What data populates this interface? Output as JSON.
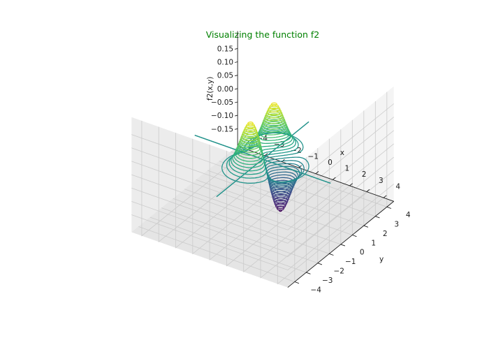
{
  "chart_data": {
    "type": "contour3d",
    "title": "Visualizing the function f2",
    "xlabel": "x",
    "ylabel": "y",
    "zlabel": "f2(x,y)",
    "xlim": [
      -4,
      4
    ],
    "ylim": [
      -4,
      4
    ],
    "zlim": [
      -0.18,
      0.18
    ],
    "x_ticks": [
      "−4",
      "−3",
      "−2",
      "−1",
      "0",
      "1",
      "2",
      "3",
      "4"
    ],
    "y_ticks": [
      "−4",
      "−3",
      "−2",
      "−1",
      "0",
      "1",
      "2",
      "3",
      "4"
    ],
    "z_ticks": [
      "−0.15",
      "−0.10",
      "−0.05",
      "0.00",
      "0.05",
      "0.10",
      "0.15"
    ],
    "x_tick_values": [
      -4,
      -3,
      -2,
      -1,
      0,
      1,
      2,
      3,
      4
    ],
    "y_tick_values": [
      -4,
      -3,
      -2,
      -1,
      0,
      1,
      2,
      3,
      4
    ],
    "z_tick_values": [
      -0.15,
      -0.1,
      -0.05,
      0.0,
      0.05,
      0.1,
      0.15
    ],
    "peaks": [
      {
        "x": 0,
        "y": -1,
        "z": 0.18
      },
      {
        "x": 0,
        "y": 1,
        "z": 0.18
      },
      {
        "x": 1,
        "y": 0,
        "z": -0.18
      }
    ],
    "contour_levels": 40,
    "colormap": "viridis",
    "grid": true
  }
}
